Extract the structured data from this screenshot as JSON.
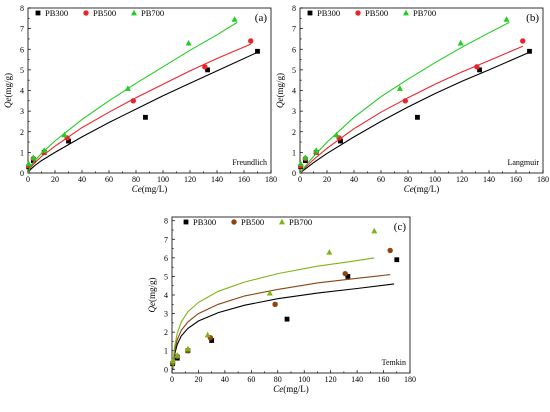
{
  "chart_data": [
    {
      "type": "scatter",
      "panel_label": "(a)",
      "model_label": "Freundlich",
      "xlabel_var": "Ce",
      "xlabel_unit": "(mg/L)",
      "ylabel_var": "Qe",
      "ylabel_unit": "(mg/g)",
      "xlim": [
        0,
        180
      ],
      "ylim": [
        0,
        8
      ],
      "xticks": [
        "0",
        "20",
        "40",
        "60",
        "80",
        "100",
        "120",
        "140",
        "160",
        "180"
      ],
      "yticks": [
        "0",
        "1",
        "2",
        "3",
        "4",
        "5",
        "6",
        "7",
        "8"
      ],
      "legend_position": "top-left",
      "series": [
        {
          "name": "PB300",
          "color": "#000000",
          "marker": "square",
          "x": [
            0.5,
            4,
            12,
            30,
            87,
            133,
            170
          ],
          "y": [
            0.3,
            0.6,
            1.0,
            1.55,
            2.7,
            5.0,
            5.9
          ],
          "fit_x": [
            0,
            2,
            5,
            10,
            20,
            40,
            60,
            80,
            100,
            120,
            140,
            170
          ],
          "fit_y": [
            0,
            0.18,
            0.36,
            0.6,
            1.0,
            1.75,
            2.45,
            3.1,
            3.75,
            4.35,
            4.95,
            5.85
          ]
        },
        {
          "name": "PB500",
          "color": "#e8262a",
          "marker": "circle",
          "x": [
            0.5,
            4,
            12,
            29,
            78,
            131,
            165
          ],
          "y": [
            0.35,
            0.7,
            1.0,
            1.7,
            3.5,
            5.15,
            6.4
          ],
          "fit_x": [
            0,
            2,
            5,
            10,
            20,
            40,
            60,
            80,
            100,
            120,
            140,
            165
          ],
          "fit_y": [
            0,
            0.28,
            0.5,
            0.8,
            1.3,
            2.2,
            2.95,
            3.65,
            4.3,
            4.95,
            5.55,
            6.25
          ]
        },
        {
          "name": "PB700",
          "color": "#22cc22",
          "marker": "triangle",
          "x": [
            0.5,
            4,
            12,
            27,
            74,
            119,
            153
          ],
          "y": [
            0.45,
            0.75,
            1.1,
            1.85,
            4.1,
            6.3,
            7.45
          ],
          "fit_x": [
            0,
            2,
            5,
            10,
            20,
            40,
            60,
            80,
            100,
            120,
            140,
            155
          ],
          "fit_y": [
            0,
            0.35,
            0.6,
            0.95,
            1.55,
            2.6,
            3.5,
            4.35,
            5.15,
            5.95,
            6.7,
            7.3
          ]
        }
      ]
    },
    {
      "type": "scatter",
      "panel_label": "(b)",
      "model_label": "Langmuir",
      "xlabel_var": "Ce",
      "xlabel_unit": "(mg/L)",
      "ylabel_var": "Qe",
      "ylabel_unit": "(mg/g)",
      "xlim": [
        0,
        180
      ],
      "ylim": [
        0,
        8
      ],
      "xticks": [
        "0",
        "20",
        "40",
        "60",
        "80",
        "100",
        "120",
        "140",
        "160",
        "180"
      ],
      "yticks": [
        "0",
        "1",
        "2",
        "3",
        "4",
        "5",
        "6",
        "7",
        "8"
      ],
      "legend_position": "top-left",
      "series": [
        {
          "name": "PB300",
          "color": "#000000",
          "marker": "square",
          "x": [
            0.5,
            4,
            12,
            30,
            87,
            133,
            170
          ],
          "y": [
            0.3,
            0.6,
            1.0,
            1.55,
            2.7,
            5.0,
            5.9
          ],
          "fit_x": [
            0,
            2,
            5,
            10,
            20,
            40,
            60,
            80,
            100,
            120,
            140,
            170
          ],
          "fit_y": [
            0,
            0.1,
            0.25,
            0.5,
            0.95,
            1.75,
            2.5,
            3.2,
            3.85,
            4.45,
            5.0,
            5.85
          ]
        },
        {
          "name": "PB500",
          "color": "#e8262a",
          "marker": "circle",
          "x": [
            0.5,
            4,
            12,
            29,
            78,
            131,
            165
          ],
          "y": [
            0.35,
            0.7,
            1.0,
            1.7,
            3.5,
            5.15,
            6.4
          ],
          "fit_x": [
            0,
            2,
            5,
            10,
            20,
            40,
            60,
            80,
            100,
            120,
            140,
            165
          ],
          "fit_y": [
            0,
            0.14,
            0.34,
            0.65,
            1.2,
            2.15,
            2.95,
            3.65,
            4.3,
            4.9,
            5.45,
            6.15
          ]
        },
        {
          "name": "PB700",
          "color": "#22cc22",
          "marker": "triangle",
          "x": [
            0.5,
            4,
            12,
            27,
            74,
            119,
            153
          ],
          "y": [
            0.45,
            0.75,
            1.1,
            1.85,
            4.1,
            6.3,
            7.45
          ],
          "fit_x": [
            0,
            2,
            5,
            10,
            20,
            40,
            60,
            80,
            100,
            120,
            140,
            155
          ],
          "fit_y": [
            0,
            0.17,
            0.42,
            0.8,
            1.5,
            2.7,
            3.7,
            4.55,
            5.35,
            6.1,
            6.8,
            7.3
          ]
        }
      ]
    },
    {
      "type": "scatter",
      "panel_label": "(c)",
      "model_label": "Temkin",
      "xlabel_var": "Ce",
      "xlabel_unit": "(mg/L)",
      "ylabel_var": "Qe",
      "ylabel_unit": "(mg/g)",
      "xlim": [
        0,
        180
      ],
      "ylim": [
        -0.2,
        8.2
      ],
      "xticks": [
        "0",
        "20",
        "40",
        "60",
        "80",
        "100",
        "120",
        "140",
        "160",
        "180"
      ],
      "yticks": [
        "0",
        "1",
        "2",
        "3",
        "4",
        "5",
        "6",
        "7",
        "8"
      ],
      "legend_position": "top",
      "series": [
        {
          "name": "PB300",
          "color": "#000000",
          "marker": "square",
          "x": [
            0.5,
            4,
            12,
            30,
            87,
            133,
            170
          ],
          "y": [
            0.3,
            0.6,
            1.0,
            1.55,
            2.7,
            5.0,
            5.9
          ],
          "fit_x": [
            0.7,
            1,
            2,
            4,
            7,
            12,
            20,
            35,
            55,
            80,
            110,
            140,
            168
          ],
          "fit_y": [
            0.0,
            0.3,
            0.8,
            1.35,
            1.8,
            2.2,
            2.6,
            3.05,
            3.45,
            3.8,
            4.1,
            4.35,
            4.6
          ]
        },
        {
          "name": "PB500",
          "color": "#8b4513",
          "marker": "circle",
          "x": [
            0.5,
            4,
            12,
            29,
            78,
            131,
            165
          ],
          "y": [
            0.35,
            0.7,
            1.0,
            1.7,
            3.5,
            5.15,
            6.4
          ],
          "fit_x": [
            0.7,
            1,
            2,
            4,
            7,
            12,
            20,
            35,
            55,
            80,
            110,
            140,
            165
          ],
          "fit_y": [
            0.05,
            0.4,
            1.0,
            1.6,
            2.1,
            2.55,
            3.0,
            3.5,
            3.95,
            4.3,
            4.65,
            4.9,
            5.1
          ]
        },
        {
          "name": "PB700",
          "color": "#7cb518",
          "marker": "triangle",
          "x": [
            0.5,
            4,
            12,
            27,
            74,
            119,
            153
          ],
          "y": [
            0.45,
            0.75,
            1.1,
            1.85,
            4.1,
            6.3,
            7.45
          ],
          "fit_x": [
            0.7,
            1,
            2,
            4,
            7,
            12,
            20,
            35,
            55,
            80,
            110,
            135,
            153
          ],
          "fit_y": [
            0.05,
            0.5,
            1.2,
            1.95,
            2.55,
            3.1,
            3.6,
            4.2,
            4.7,
            5.15,
            5.55,
            5.8,
            6.0
          ]
        }
      ]
    }
  ]
}
